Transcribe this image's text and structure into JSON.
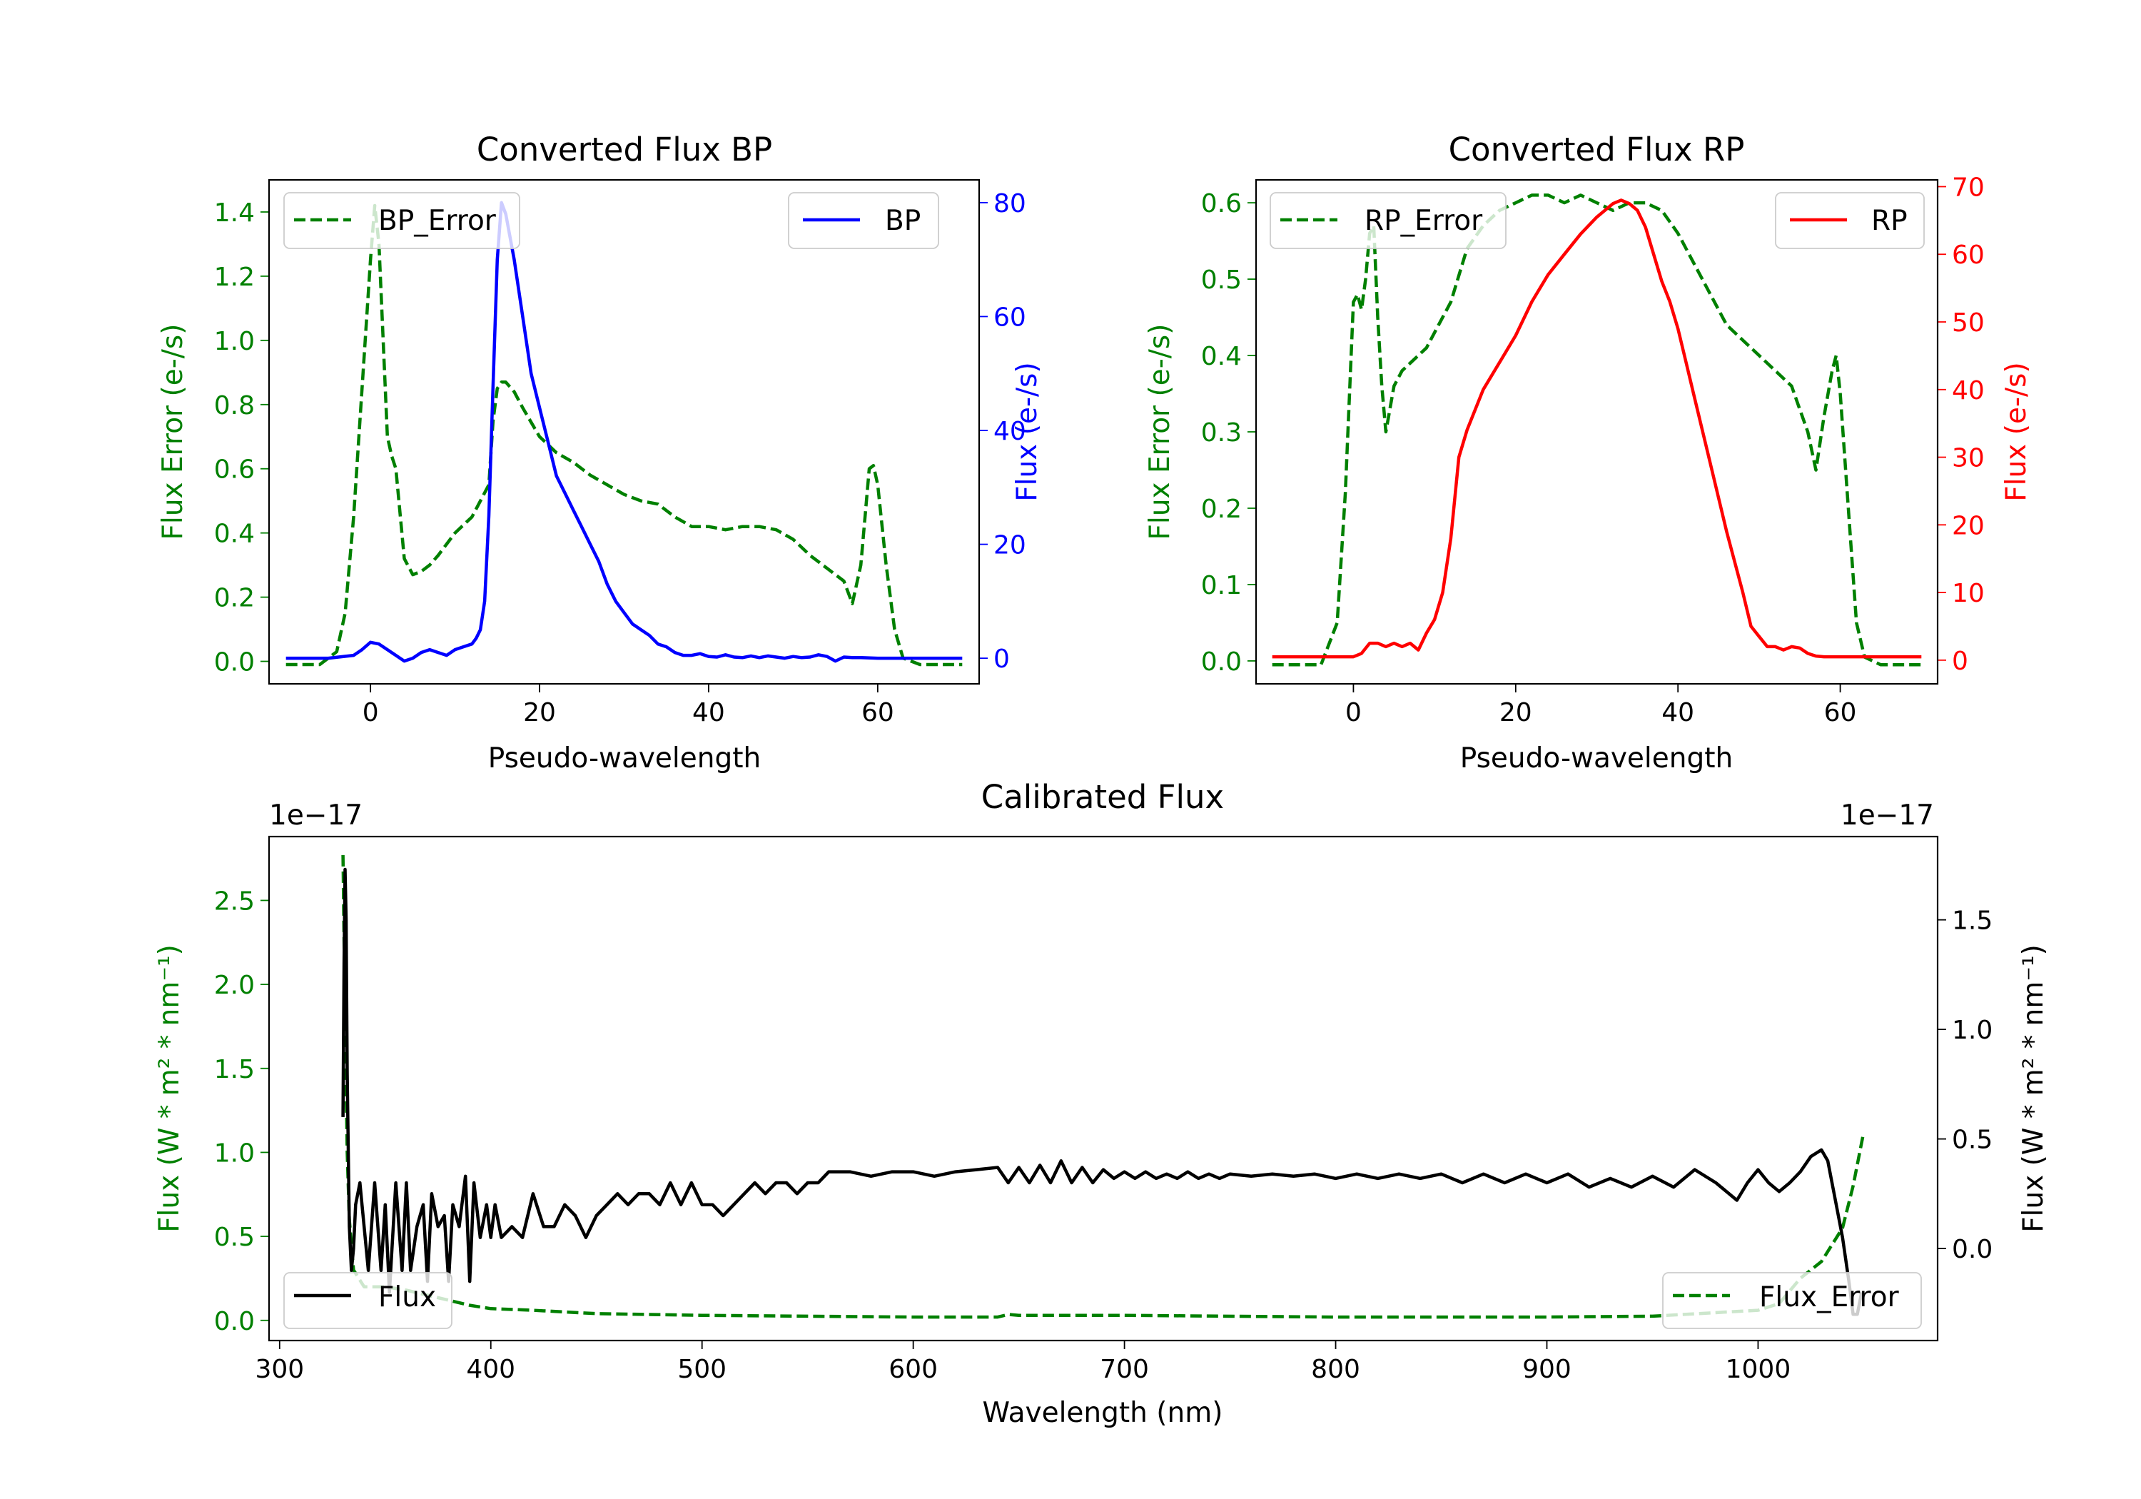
{
  "chart_data": [
    {
      "id": "bp",
      "type": "line",
      "title": "Converted Flux BP",
      "xlabel": "Pseudo-wavelength",
      "ylabel_left": "Flux Error (e-/s)",
      "ylabel_right": "Flux (e-/s)",
      "xlim": [
        -12,
        72
      ],
      "ylim_left": [
        -0.07,
        1.5
      ],
      "ylim_right": [
        -4.5,
        84
      ],
      "xticks": [
        0,
        20,
        40,
        60
      ],
      "yticks_left": [
        "0.0",
        "0.2",
        "0.4",
        "0.6",
        "0.8",
        "1.0",
        "1.2",
        "1.4"
      ],
      "yticks_right": [
        "0",
        "20",
        "40",
        "60",
        "80"
      ],
      "left_axis_color": "#008000",
      "right_axis_color": "#0000ff",
      "series": [
        {
          "name": "BP_Error",
          "axis": "left",
          "color": "#008000",
          "style": "dashed",
          "x": [
            -10,
            -6,
            -4,
            -3,
            -2,
            -1,
            0,
            0.5,
            1,
            1.5,
            2,
            2.5,
            3,
            4,
            5,
            6,
            7,
            8,
            10,
            12,
            14,
            14.5,
            15,
            15.5,
            16,
            17,
            18,
            20,
            22,
            24,
            26,
            28,
            30,
            32,
            34,
            36,
            38,
            40,
            42,
            44,
            46,
            48,
            50,
            52,
            54,
            56,
            57,
            58,
            59,
            59.5,
            60,
            61,
            62,
            63,
            65,
            70
          ],
          "y": [
            -0.01,
            -0.01,
            0.03,
            0.15,
            0.45,
            0.85,
            1.25,
            1.42,
            1.3,
            1.0,
            0.7,
            0.64,
            0.6,
            0.32,
            0.27,
            0.28,
            0.3,
            0.33,
            0.4,
            0.45,
            0.55,
            0.75,
            0.85,
            0.87,
            0.87,
            0.84,
            0.79,
            0.7,
            0.65,
            0.62,
            0.58,
            0.55,
            0.52,
            0.5,
            0.49,
            0.45,
            0.42,
            0.42,
            0.41,
            0.42,
            0.42,
            0.41,
            0.38,
            0.33,
            0.29,
            0.25,
            0.18,
            0.3,
            0.6,
            0.61,
            0.55,
            0.3,
            0.1,
            0.01,
            -0.01,
            -0.01
          ]
        },
        {
          "name": "BP",
          "axis": "right",
          "color": "#0000ff",
          "style": "solid",
          "x": [
            -10,
            -5,
            -2,
            -1,
            0,
            1,
            2,
            3,
            4,
            5,
            6,
            7,
            8,
            9,
            10,
            11,
            12,
            12.5,
            13,
            13.5,
            14,
            14.5,
            15,
            15.5,
            16,
            16.5,
            17,
            18,
            19,
            20,
            21,
            22,
            23,
            24,
            25,
            26,
            27,
            28,
            29,
            30,
            31,
            32,
            33,
            34,
            35,
            36,
            37,
            38,
            39,
            40,
            41,
            42,
            43,
            44,
            45,
            46,
            47,
            48,
            49,
            50,
            51,
            52,
            53,
            54,
            55,
            56,
            57,
            58,
            60,
            70
          ],
          "y": [
            0,
            0,
            0.5,
            1.5,
            2.8,
            2.5,
            1.5,
            0.5,
            -0.5,
            0,
            1,
            1.5,
            1,
            0.5,
            1.5,
            2,
            2.5,
            3.5,
            5,
            10,
            25,
            48,
            70,
            80,
            78,
            74,
            70,
            60,
            50,
            44,
            38,
            32,
            29,
            26,
            23,
            20,
            17,
            13,
            10,
            8,
            6,
            5,
            4,
            2.5,
            2,
            1,
            0.5,
            0.5,
            0.8,
            0.3,
            0.2,
            0.6,
            0.2,
            0.1,
            0.4,
            0.1,
            0.4,
            0.2,
            0,
            0.3,
            0.1,
            0.2,
            0.6,
            0.3,
            -0.5,
            0.2,
            0.1,
            0.1,
            0,
            0
          ]
        }
      ]
    },
    {
      "id": "rp",
      "type": "line",
      "title": "Converted Flux RP",
      "xlabel": "Pseudo-wavelength",
      "ylabel_left": "Flux Error (e-/s)",
      "ylabel_right": "Flux (e-/s)",
      "xlim": [
        -12,
        72
      ],
      "ylim_left": [
        -0.03,
        0.63
      ],
      "ylim_right": [
        -3.5,
        71
      ],
      "xticks": [
        0,
        20,
        40,
        60
      ],
      "yticks_left": [
        "0.0",
        "0.1",
        "0.2",
        "0.3",
        "0.4",
        "0.5",
        "0.6"
      ],
      "yticks_right": [
        "0",
        "10",
        "20",
        "30",
        "40",
        "50",
        "60",
        "70"
      ],
      "left_axis_color": "#008000",
      "right_axis_color": "#ff0000",
      "series": [
        {
          "name": "RP_Error",
          "axis": "left",
          "color": "#008000",
          "style": "dashed",
          "x": [
            -10,
            -4,
            -2,
            -1,
            0,
            0.5,
            1,
            1.5,
            2,
            2.5,
            3,
            3.5,
            4,
            5,
            6,
            7,
            8,
            9,
            10,
            12,
            14,
            16,
            18,
            20,
            22,
            24,
            26,
            28,
            30,
            32,
            34,
            36,
            38,
            40,
            42,
            44,
            46,
            48,
            50,
            52,
            54,
            55,
            56,
            57,
            58,
            59,
            59.5,
            60,
            61,
            62,
            63,
            65,
            70
          ],
          "y": [
            -0.005,
            -0.005,
            0.05,
            0.22,
            0.47,
            0.48,
            0.46,
            0.5,
            0.56,
            0.57,
            0.45,
            0.36,
            0.3,
            0.36,
            0.38,
            0.39,
            0.4,
            0.41,
            0.43,
            0.47,
            0.54,
            0.57,
            0.59,
            0.6,
            0.61,
            0.61,
            0.6,
            0.61,
            0.6,
            0.59,
            0.6,
            0.6,
            0.59,
            0.56,
            0.52,
            0.48,
            0.44,
            0.42,
            0.4,
            0.38,
            0.36,
            0.33,
            0.3,
            0.25,
            0.32,
            0.38,
            0.4,
            0.35,
            0.2,
            0.05,
            0.005,
            -0.005,
            -0.005
          ]
        },
        {
          "name": "RP",
          "axis": "right",
          "color": "#ff0000",
          "style": "solid",
          "x": [
            -10,
            -2,
            0,
            1,
            2,
            3,
            4,
            5,
            6,
            7,
            8,
            9,
            10,
            11,
            12,
            13,
            14,
            16,
            18,
            20,
            22,
            24,
            26,
            28,
            30,
            32,
            33,
            34,
            35,
            36,
            37,
            38,
            39,
            40,
            41,
            42,
            44,
            46,
            48,
            49,
            50,
            51,
            52,
            53,
            54,
            55,
            56,
            57,
            58,
            60,
            62,
            70
          ],
          "y": [
            0.5,
            0.5,
            0.5,
            1,
            2.5,
            2.5,
            2,
            2.5,
            2,
            2.5,
            1.5,
            4,
            6,
            10,
            18,
            30,
            34,
            40,
            44,
            48,
            53,
            57,
            60,
            63,
            65.5,
            67.5,
            68,
            67.5,
            66.5,
            64,
            60,
            56,
            53,
            49,
            44,
            39,
            29,
            19,
            10,
            5,
            3.5,
            2,
            2,
            1.5,
            2,
            1.8,
            1,
            0.6,
            0.5,
            0.5,
            0.5,
            0.5
          ]
        }
      ]
    },
    {
      "id": "cal",
      "type": "line",
      "title": "Calibrated Flux",
      "xlabel": "Wavelength (nm)",
      "ylabel_left": "Flux (W * m² * nm⁻¹)",
      "ylabel_right": "Flux (W * m² * nm⁻¹)",
      "offset_left": "1e−17",
      "offset_right": "1e−17",
      "xlim": [
        295,
        1085
      ],
      "ylim_left": [
        -0.12,
        2.88
      ],
      "ylim_right": [
        -0.42,
        1.88
      ],
      "xticks": [
        300,
        400,
        500,
        600,
        700,
        800,
        900,
        1000
      ],
      "yticks_left": [
        "0.0",
        "0.5",
        "1.0",
        "1.5",
        "2.0",
        "2.5"
      ],
      "yticks_right": [
        "0.0",
        "0.5",
        "1.0",
        "1.5"
      ],
      "left_axis_color": "#008000",
      "right_axis_color": "#000000",
      "series": [
        {
          "name": "Flux_Error",
          "axis": "left",
          "color": "#008000",
          "style": "dashed",
          "x": [
            330,
            331,
            332,
            333,
            335,
            340,
            350,
            360,
            370,
            380,
            390,
            400,
            420,
            450,
            500,
            550,
            600,
            640,
            645,
            650,
            700,
            800,
            900,
            950,
            1000,
            1010,
            1020,
            1030,
            1040,
            1045,
            1050
          ],
          "y": [
            2.77,
            1.8,
            1.0,
            0.6,
            0.3,
            0.2,
            0.2,
            0.18,
            0.15,
            0.12,
            0.09,
            0.07,
            0.06,
            0.04,
            0.03,
            0.025,
            0.02,
            0.02,
            0.035,
            0.03,
            0.03,
            0.02,
            0.02,
            0.025,
            0.06,
            0.1,
            0.25,
            0.35,
            0.55,
            0.8,
            1.12
          ]
        },
        {
          "name": "Flux",
          "axis": "right",
          "color": "#000000",
          "style": "solid",
          "x": [
            330,
            330.5,
            331,
            331.5,
            332,
            333,
            334,
            335,
            336,
            338,
            340,
            342,
            345,
            348,
            350,
            352,
            355,
            358,
            360,
            362,
            365,
            368,
            370,
            372,
            375,
            378,
            380,
            382,
            385,
            388,
            390,
            392,
            395,
            398,
            400,
            402,
            405,
            410,
            415,
            420,
            425,
            430,
            435,
            440,
            445,
            450,
            455,
            460,
            465,
            470,
            475,
            480,
            485,
            490,
            495,
            500,
            505,
            510,
            515,
            520,
            525,
            530,
            535,
            540,
            545,
            550,
            555,
            560,
            570,
            580,
            590,
            600,
            610,
            620,
            630,
            640,
            645,
            650,
            655,
            660,
            665,
            670,
            675,
            680,
            685,
            690,
            695,
            700,
            705,
            710,
            715,
            720,
            725,
            730,
            735,
            740,
            745,
            750,
            760,
            770,
            780,
            790,
            800,
            810,
            820,
            830,
            840,
            850,
            860,
            870,
            880,
            890,
            900,
            910,
            920,
            930,
            940,
            950,
            960,
            965,
            970,
            980,
            990,
            995,
            1000,
            1005,
            1010,
            1015,
            1020,
            1025,
            1030,
            1033,
            1036,
            1040,
            1043,
            1045,
            1047,
            1049
          ],
          "y": [
            0.6,
            1.3,
            1.73,
            1.5,
            0.8,
            0.1,
            -0.1,
            0.0,
            0.2,
            0.3,
            0.1,
            -0.1,
            0.3,
            -0.1,
            0.2,
            -0.2,
            0.3,
            -0.1,
            0.3,
            -0.1,
            0.1,
            0.2,
            -0.15,
            0.25,
            0.1,
            0.15,
            -0.15,
            0.2,
            0.1,
            0.33,
            -0.15,
            0.3,
            0.05,
            0.2,
            0.05,
            0.2,
            0.05,
            0.1,
            0.05,
            0.25,
            0.1,
            0.1,
            0.2,
            0.15,
            0.05,
            0.15,
            0.2,
            0.25,
            0.2,
            0.25,
            0.25,
            0.2,
            0.3,
            0.2,
            0.3,
            0.2,
            0.2,
            0.15,
            0.2,
            0.25,
            0.3,
            0.25,
            0.3,
            0.3,
            0.25,
            0.3,
            0.3,
            0.35,
            0.35,
            0.33,
            0.35,
            0.35,
            0.33,
            0.35,
            0.36,
            0.37,
            0.3,
            0.37,
            0.3,
            0.38,
            0.3,
            0.4,
            0.3,
            0.37,
            0.3,
            0.36,
            0.32,
            0.35,
            0.32,
            0.35,
            0.32,
            0.34,
            0.32,
            0.35,
            0.32,
            0.34,
            0.32,
            0.34,
            0.33,
            0.34,
            0.33,
            0.34,
            0.32,
            0.34,
            0.32,
            0.34,
            0.32,
            0.34,
            0.3,
            0.34,
            0.3,
            0.34,
            0.3,
            0.34,
            0.28,
            0.32,
            0.28,
            0.33,
            0.28,
            0.32,
            0.36,
            0.3,
            0.22,
            0.3,
            0.36,
            0.3,
            0.26,
            0.3,
            0.35,
            0.42,
            0.45,
            0.4,
            0.25,
            0.05,
            -0.15,
            -0.3,
            -0.3,
            -0.2
          ]
        }
      ]
    }
  ]
}
